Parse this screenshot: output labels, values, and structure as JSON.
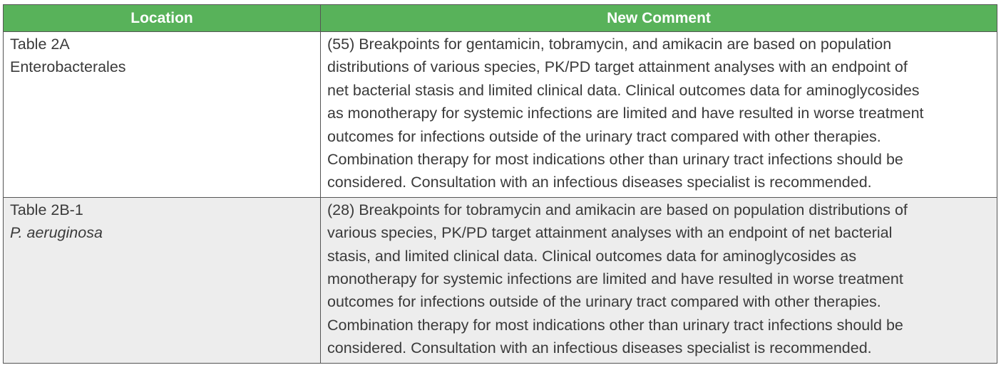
{
  "table": {
    "headers": [
      "Location",
      "New Comment"
    ],
    "header_color": "#58b25a",
    "rows": [
      {
        "location": [
          "Table 2A",
          "Enterobacterales"
        ],
        "comment": [
          "(55) Breakpoints for gentamicin, tobramycin, and amikacin are based on population",
          "distributions of various species, PK/PD target attainment analyses with an endpoint of",
          "net bacterial stasis and limited clinical data. Clinical outcomes data for aminoglycosides",
          "as monotherapy for systemic infections are limited and have resulted in worse treatment",
          "outcomes for infections outside of the urinary tract compared with other therapies.",
          "Combination therapy for most indications other than urinary tract infections should be",
          "considered. Consultation with an infectious diseases specialist is recommended."
        ]
      },
      {
        "location": [
          "Table 2B-1",
          "P. aeruginosa"
        ],
        "comment": [
          "(28) Breakpoints for tobramycin and amikacin are based on population distributions of",
          "various species, PK/PD target attainment analyses with an endpoint of net bacterial",
          "stasis, and limited clinical data. Clinical outcomes data for aminoglycosides as",
          "monotherapy for systemic infections are limited and have resulted in worse treatment",
          "outcomes for infections outside of the urinary tract compared with other therapies.",
          "Combination therapy for most indications other than urinary tract infections should be",
          "considered. Consultation with an infectious diseases specialist is recommended."
        ]
      }
    ]
  }
}
